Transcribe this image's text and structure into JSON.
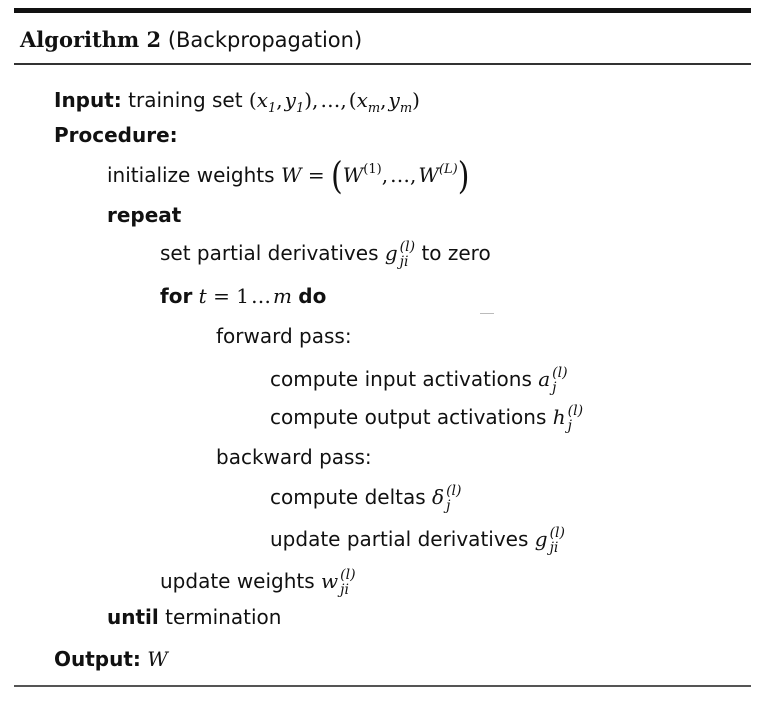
{
  "algorithm": {
    "label": "Algorithm 2",
    "name": "(Backpropagation)"
  },
  "lines": {
    "input_kw": "Input:",
    "input_text": "training set",
    "procedure_kw": "Procedure:",
    "init_text": "initialize weights",
    "repeat_kw": "repeat",
    "set_text": "set partial derivatives",
    "set_suffix": "to zero",
    "for_kw": "for",
    "do_kw": "do",
    "forward_text": "forward pass:",
    "compute_input_text": "compute input activations",
    "compute_output_text": "compute output activations",
    "backward_text": "backward pass:",
    "compute_deltas_text": "compute deltas",
    "update_pd_text": "update partial derivatives",
    "update_w_text": "update weights",
    "until_kw": "until",
    "until_text": "termination",
    "output_kw": "Output:",
    "output_var": "W"
  },
  "math": {
    "g": "g",
    "a": "a",
    "h": "h",
    "delta": "δ",
    "w": "w",
    "W": "W",
    "l_sup": "(l)",
    "ji_sub": "ji",
    "j_sub": "j",
    "one_sup": "(1)",
    "L_sup": "(L)",
    "t": "t",
    "m": "m",
    "x": "x",
    "y": "y",
    "one": "1",
    "eq": "=",
    "dots": "…"
  }
}
